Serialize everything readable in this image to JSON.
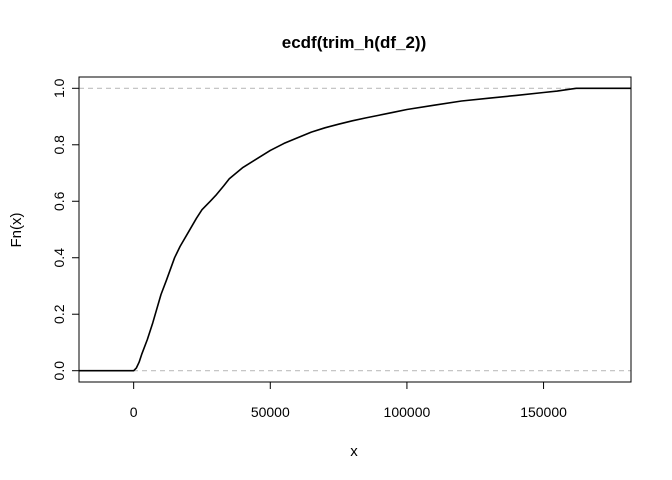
{
  "chart_data": {
    "type": "line",
    "title": "ecdf(trim_h(df_2))",
    "xlabel": "x",
    "ylabel": "Fn(x)",
    "xlim": [
      -20000,
      182000
    ],
    "ylim": [
      -0.04,
      1.04
    ],
    "x_ticks": [
      0,
      50000,
      100000,
      150000
    ],
    "x_tick_labels": [
      "0",
      "50000",
      "100000",
      "150000"
    ],
    "y_ticks": [
      0.0,
      0.2,
      0.4,
      0.6,
      0.8,
      1.0
    ],
    "y_tick_labels": [
      "0.0",
      "0.2",
      "0.4",
      "0.6",
      "0.8",
      "1.0"
    ],
    "reference_lines": [
      0,
      1
    ],
    "reference_line_style": "dashed grey",
    "grid": false,
    "legend": "none",
    "series": [
      {
        "x": [
          -20000,
          0,
          1000,
          2000,
          3000,
          5000,
          7000,
          10000,
          12000,
          15000,
          17000,
          20000,
          23000,
          25000,
          28000,
          30000,
          33000,
          35000,
          40000,
          45000,
          50000,
          55000,
          60000,
          65000,
          70000,
          75000,
          80000,
          85000,
          90000,
          95000,
          100000,
          110000,
          120000,
          130000,
          140000,
          150000,
          155000,
          160000,
          162000,
          182000
        ],
        "y": [
          0,
          0,
          0.01,
          0.03,
          0.06,
          0.11,
          0.17,
          0.27,
          0.32,
          0.4,
          0.44,
          0.49,
          0.54,
          0.57,
          0.6,
          0.62,
          0.655,
          0.68,
          0.72,
          0.75,
          0.78,
          0.805,
          0.825,
          0.845,
          0.86,
          0.873,
          0.885,
          0.895,
          0.905,
          0.915,
          0.925,
          0.94,
          0.955,
          0.965,
          0.975,
          0.985,
          0.99,
          0.997,
          1.0,
          1.0
        ]
      }
    ],
    "colors": {
      "line": "#000000",
      "reference": "#bfbfbf",
      "frame": "#000000"
    }
  }
}
